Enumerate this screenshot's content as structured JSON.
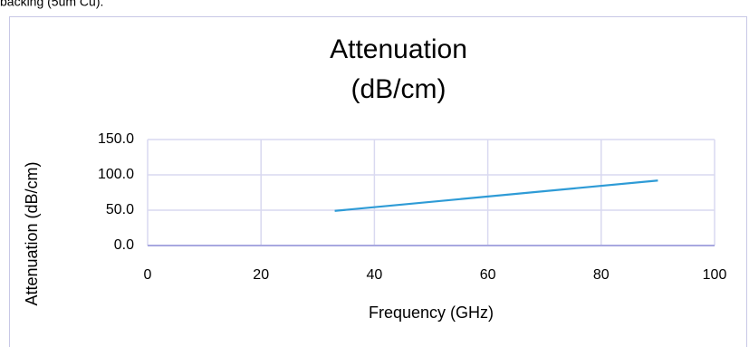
{
  "caption": "backing (5um Cu).",
  "chart_data": {
    "type": "line",
    "title": [
      "Attenuation",
      "(dB/cm)"
    ],
    "x_label": "Frequency (GHz)",
    "y_label": "Attenuation (dB/cm)",
    "x": [
      33,
      90
    ],
    "series": [
      {
        "color": "#2e9bd6",
        "values": [
          49,
          92
        ]
      }
    ],
    "xlim": [
      0,
      100
    ],
    "xticks": [
      0,
      20,
      40,
      60,
      80,
      100
    ],
    "ylim": [
      0,
      150
    ],
    "yticks": [
      {
        "value": 0,
        "label": "0.0"
      },
      {
        "value": 50,
        "label": "50.0"
      },
      {
        "value": 100,
        "label": "100.0"
      },
      {
        "value": 150,
        "label": "150.0"
      }
    ],
    "grid": true
  }
}
